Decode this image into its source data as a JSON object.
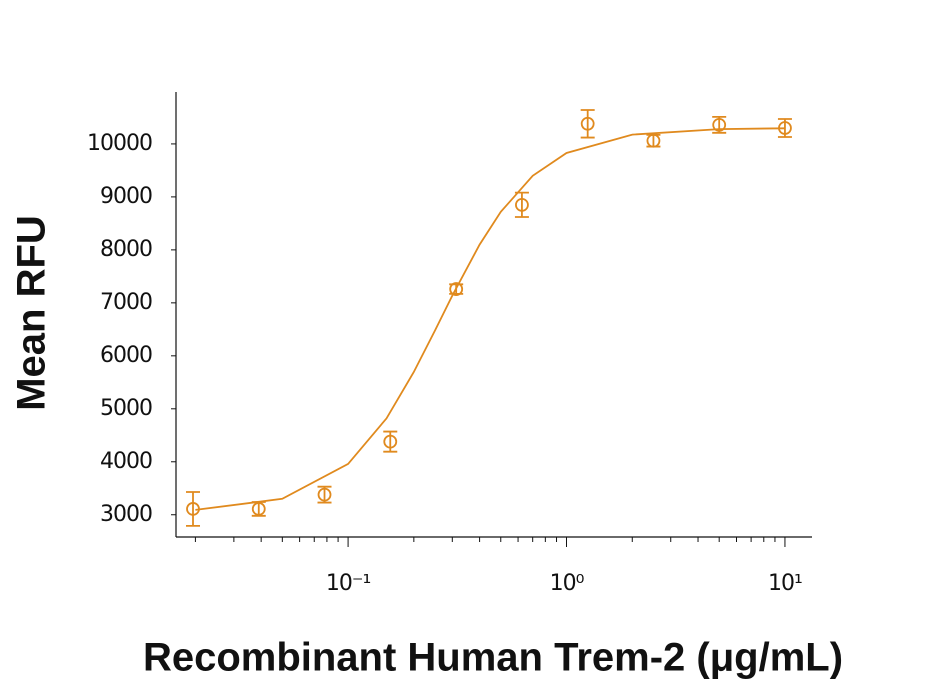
{
  "chart_data": {
    "type": "scatter",
    "x_label": "Recombinant Human Trem-2 (μg/mL)",
    "y_label": "Mean RFU",
    "color": "#e08a1e",
    "x_log": true,
    "xlim": [
      0.0163,
      13.3
    ],
    "ylim": [
      2580,
      10980
    ],
    "xticks": [
      {
        "value": 0.1,
        "label": "10⁻¹"
      },
      {
        "value": 1,
        "label": "10⁰"
      },
      {
        "value": 10,
        "label": "10¹"
      }
    ],
    "xminorticks": [
      0.02,
      0.03,
      0.04,
      0.05,
      0.06,
      0.07,
      0.08,
      0.09,
      0.2,
      0.3,
      0.4,
      0.5,
      0.6,
      0.7,
      0.8,
      0.9,
      2,
      3,
      4,
      5,
      6,
      7,
      8,
      9
    ],
    "yticks": [
      3000,
      4000,
      5000,
      6000,
      7000,
      8000,
      9000,
      10000
    ],
    "points": {
      "x": [
        0.0195,
        0.039,
        0.078,
        0.156,
        0.3125,
        0.625,
        1.25,
        2.5,
        5,
        10
      ],
      "values": [
        3110,
        3110,
        3380,
        4380,
        7260,
        8850,
        10380,
        10060,
        10360,
        10300
      ],
      "errors": [
        320,
        130,
        150,
        190,
        90,
        230,
        260,
        110,
        150,
        170
      ]
    },
    "fit": {
      "x": [
        0.02,
        0.05,
        0.1,
        0.15,
        0.2,
        0.25,
        0.3,
        0.4,
        0.5,
        0.7,
        1,
        2,
        5,
        10
      ],
      "values": [
        3091,
        3301,
        3960,
        4818,
        5694,
        6478,
        7137,
        8100,
        8719,
        9398,
        9828,
        10176,
        10280,
        10295
      ]
    }
  }
}
